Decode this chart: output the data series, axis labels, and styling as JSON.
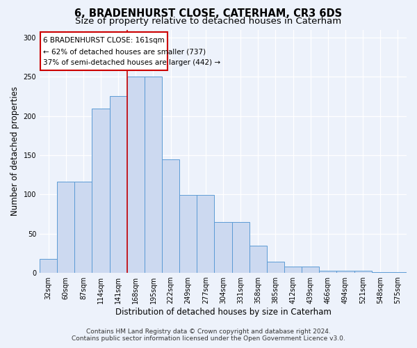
{
  "title": "6, BRADENHURST CLOSE, CATERHAM, CR3 6DS",
  "subtitle": "Size of property relative to detached houses in Caterham",
  "xlabel": "Distribution of detached houses by size in Caterham",
  "ylabel": "Number of detached properties",
  "categories": [
    "32sqm",
    "60sqm",
    "87sqm",
    "114sqm",
    "141sqm",
    "168sqm",
    "195sqm",
    "222sqm",
    "249sqm",
    "277sqm",
    "304sqm",
    "331sqm",
    "358sqm",
    "385sqm",
    "412sqm",
    "439sqm",
    "466sqm",
    "494sqm",
    "521sqm",
    "548sqm",
    "575sqm"
  ],
  "values": [
    18,
    116,
    116,
    209,
    225,
    250,
    250,
    145,
    99,
    99,
    65,
    65,
    35,
    14,
    8,
    8,
    3,
    3,
    3,
    1,
    1
  ],
  "bar_color": "#ccd9f0",
  "bar_edge_color": "#5b9bd5",
  "annotation_border_color": "#cc0000",
  "annotation_text_line1": "6 BRADENHURST CLOSE: 161sqm",
  "annotation_text_line2": "← 62% of detached houses are smaller (737)",
  "annotation_text_line3": "37% of semi-detached houses are larger (442) →",
  "marker_line_color": "#cc0000",
  "footer_line1": "Contains HM Land Registry data © Crown copyright and database right 2024.",
  "footer_line2": "Contains public sector information licensed under the Open Government Licence v3.0.",
  "ylim": [
    0,
    310
  ],
  "yticks": [
    0,
    50,
    100,
    150,
    200,
    250,
    300
  ],
  "background_color": "#edf2fb",
  "plot_background": "#edf2fb",
  "grid_color": "#ffffff",
  "title_fontsize": 10.5,
  "subtitle_fontsize": 9.5,
  "axis_label_fontsize": 8.5,
  "tick_fontsize": 7,
  "footer_fontsize": 6.5,
  "annotation_fontsize": 7.5
}
